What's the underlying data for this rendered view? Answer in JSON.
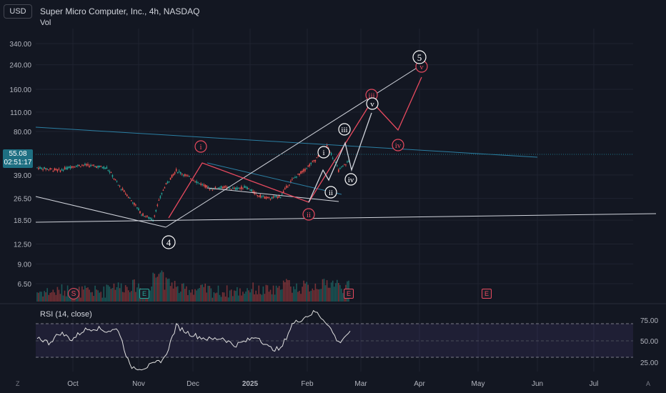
{
  "header": {
    "currency_button": "USD",
    "title": "Super Micro Computer, Inc., 4h, NASDAQ",
    "volume_label": "Vol",
    "last_price": "55.08",
    "countdown": "02:51:17"
  },
  "rsi": {
    "label": "RSI (14, close)",
    "ticks": [
      "75.00",
      "50.00",
      "25.00"
    ],
    "upper_band": 70,
    "lower_band": 30
  },
  "footer": {
    "timezone_button": "Z",
    "auto_button": "A"
  },
  "event_markers": [
    {
      "kind": "split",
      "label": "S"
    },
    {
      "kind": "earnings",
      "label": "E"
    },
    {
      "kind": "earnings",
      "label": "E"
    },
    {
      "kind": "earnings",
      "label": "E"
    }
  ],
  "wave_labels_red": [
    "i",
    "ii",
    "iii",
    "iv",
    "v"
  ],
  "wave_labels_white": [
    "4",
    "i",
    "ii",
    "iii",
    "iv",
    "v",
    "5"
  ],
  "colors": {
    "background": "#131722",
    "up": "#26a69a",
    "down": "#ef5350",
    "wave_red": "#e84a5f",
    "trendline_blue": "#2b7fa3",
    "rsi_line": "#e0e0e0",
    "grid": "#1f2330"
  },
  "chart_data": {
    "type": "line",
    "title": "Super Micro Computer, Inc., 4h, NASDAQ",
    "y_scale": "log",
    "price_ticks": [
      "340.00",
      "240.00",
      "160.00",
      "110.00",
      "80.00",
      "55.08",
      "39.00",
      "26.50",
      "18.50",
      "12.50",
      "9.00",
      "6.50"
    ],
    "x_ticks": [
      "Oct",
      "Nov",
      "Dec",
      "2025",
      "Feb",
      "Mar",
      "Apr",
      "May",
      "Jun",
      "Jul"
    ],
    "series": [
      {
        "x": [
          "Sep 16",
          "Sep 24",
          "Oct 1",
          "Oct 9",
          "Oct 17",
          "Oct 25",
          "Oct 30",
          "Nov 4",
          "Nov 8",
          "Nov 14",
          "Nov 19",
          "Nov 25",
          "Dec 3",
          "Dec 10",
          "Dec 17",
          "Dec 24",
          "Dec 31",
          "Jan 8",
          "Jan 15",
          "Jan 22",
          "Jan 28",
          "Feb 3",
          "Feb 7",
          "Feb 12",
          "Feb 15",
          "Feb 18",
          "Feb 21",
          "Feb 24"
        ],
        "values": [
          44,
          43,
          42,
          45,
          46,
          45,
          44,
          33,
          26.5,
          20.5,
          18.5,
          32,
          42,
          38,
          34,
          31,
          32,
          31,
          32,
          28,
          26.5,
          27.5,
          36,
          42,
          50,
          63,
          42,
          50
        ]
      }
    ],
    "rsi_values": [
      55,
      48,
      60,
      52,
      63,
      66,
      62,
      64,
      20,
      18,
      22,
      30,
      68,
      60,
      55,
      52,
      54,
      45,
      50,
      56,
      42,
      40,
      70,
      78,
      85,
      72,
      48,
      62
    ]
  }
}
